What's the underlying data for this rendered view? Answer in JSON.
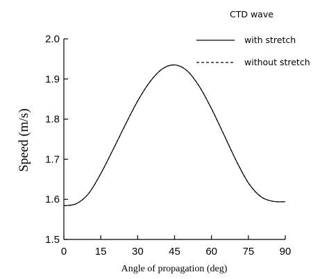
{
  "chart_data": {
    "type": "line",
    "xlabel": "Angle of propagation (deg)",
    "ylabel": "Speed (m/s)",
    "xlim": [
      0,
      90
    ],
    "ylim": [
      1.5,
      2.0
    ],
    "x_ticks": [
      "0",
      "15",
      "30",
      "45",
      "60",
      "75",
      "90"
    ],
    "y_ticks": [
      "1.5",
      "1.6",
      "1.7",
      "1.8",
      "1.9",
      "2.0"
    ],
    "legend": {
      "title": "CTD wave",
      "placement": "top-right",
      "entries": [
        {
          "label": "with stretch",
          "style": "solid"
        },
        {
          "label": "without stretch",
          "style": "dashed"
        }
      ]
    },
    "grid": false,
    "series": [
      {
        "name": "with stretch",
        "style": "solid",
        "color": "#000000",
        "x": [
          0,
          5,
          10,
          15,
          20,
          25,
          30,
          35,
          40,
          45,
          50,
          55,
          60,
          65,
          70,
          75,
          80,
          85,
          90
        ],
        "y": [
          1.584,
          1.589,
          1.614,
          1.664,
          1.724,
          1.786,
          1.845,
          1.893,
          1.925,
          1.935,
          1.921,
          1.882,
          1.826,
          1.762,
          1.697,
          1.641,
          1.607,
          1.595,
          1.594
        ]
      },
      {
        "name": "without stretch",
        "style": "dashed",
        "color": "#000000",
        "x": [
          0,
          5,
          10,
          15,
          20,
          25,
          30,
          35,
          40,
          45,
          50,
          55,
          60,
          65,
          70,
          75,
          80,
          85,
          90
        ],
        "y": [
          1.584,
          1.589,
          1.614,
          1.664,
          1.724,
          1.786,
          1.845,
          1.893,
          1.925,
          1.935,
          1.921,
          1.882,
          1.826,
          1.762,
          1.697,
          1.641,
          1.607,
          1.595,
          1.594
        ]
      }
    ]
  }
}
